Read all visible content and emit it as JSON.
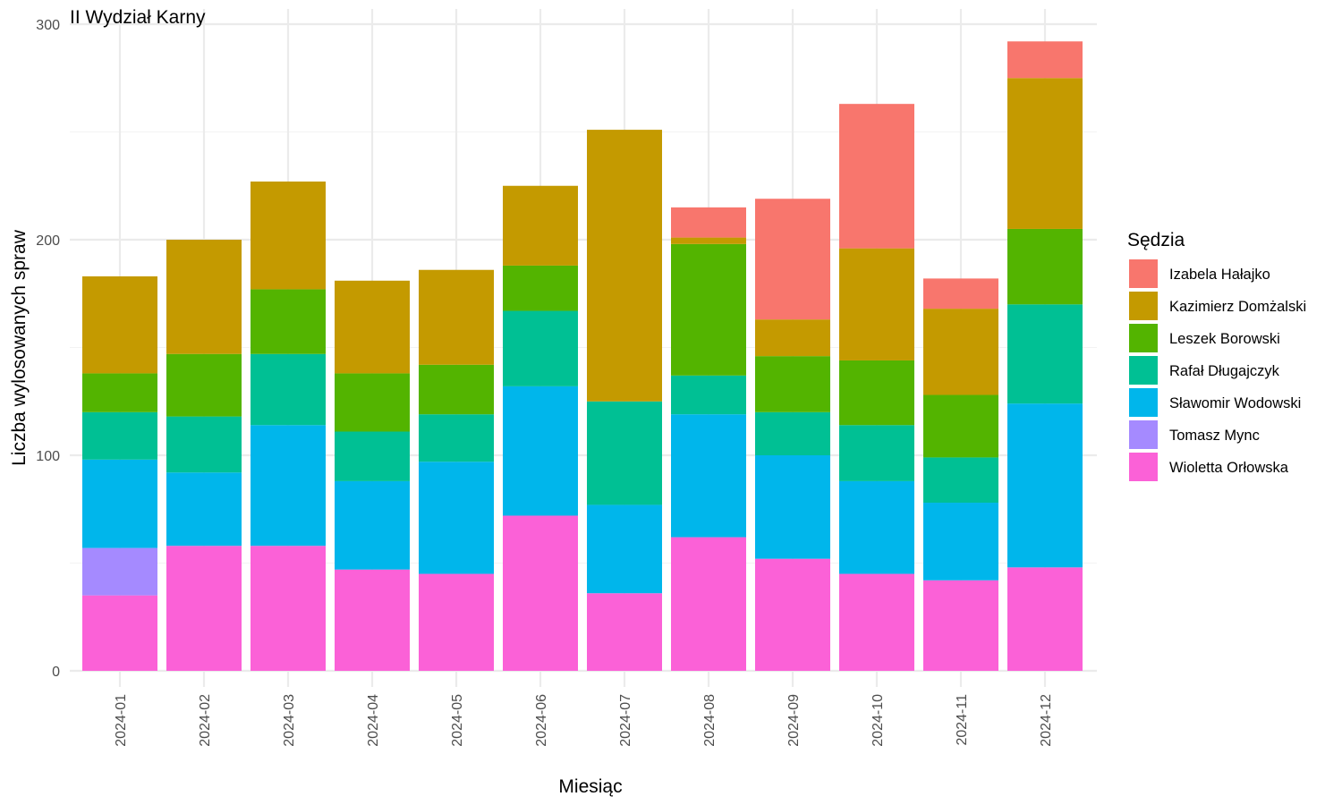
{
  "chart_data": {
    "type": "bar",
    "stacked": true,
    "title": "II Wydział Karny",
    "xlabel": "Miesiąc",
    "ylabel": "Liczba wylosowanych spraw",
    "ylim": [
      0,
      300
    ],
    "yticks": [
      0,
      100,
      200,
      300
    ],
    "grid": true,
    "legend": {
      "title": "Sędzia",
      "position": "right"
    },
    "categories": [
      "2024-01",
      "2024-02",
      "2024-03",
      "2024-04",
      "2024-05",
      "2024-06",
      "2024-07",
      "2024-08",
      "2024-09",
      "2024-10",
      "2024-11",
      "2024-12"
    ],
    "series": [
      {
        "name": "Izabela Hałajko",
        "color": "#F8766D",
        "values": [
          0,
          0,
          0,
          0,
          0,
          0,
          0,
          14,
          56,
          67,
          14,
          17
        ]
      },
      {
        "name": "Kazimierz Domżalski",
        "color": "#C49A00",
        "values": [
          45,
          53,
          50,
          43,
          44,
          37,
          126,
          3,
          17,
          52,
          40,
          70
        ]
      },
      {
        "name": "Leszek Borowski",
        "color": "#53B400",
        "values": [
          18,
          29,
          30,
          27,
          23,
          21,
          0,
          61,
          26,
          30,
          29,
          35
        ]
      },
      {
        "name": "Rafał Długajczyk",
        "color": "#00C094",
        "values": [
          22,
          26,
          33,
          23,
          22,
          35,
          48,
          18,
          20,
          26,
          21,
          46
        ]
      },
      {
        "name": "Sławomir Wodowski",
        "color": "#00B6EB",
        "values": [
          41,
          34,
          56,
          41,
          52,
          60,
          41,
          57,
          48,
          43,
          36,
          76
        ]
      },
      {
        "name": "Tomasz Mync",
        "color": "#A58AFF",
        "values": [
          22,
          0,
          0,
          0,
          0,
          0,
          0,
          0,
          0,
          0,
          0,
          0
        ]
      },
      {
        "name": "Wioletta Orłowska",
        "color": "#FB61D7",
        "values": [
          35,
          58,
          58,
          47,
          45,
          72,
          36,
          62,
          52,
          45,
          42,
          48
        ]
      }
    ]
  }
}
